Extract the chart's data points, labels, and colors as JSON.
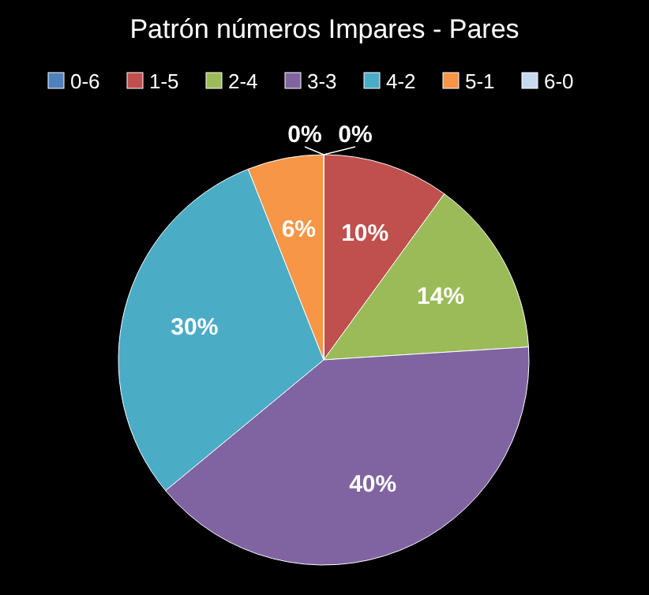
{
  "chart_data": {
    "type": "pie",
    "title": "Patrón números Impares - Pares",
    "categories": [
      "0-6",
      "1-5",
      "2-4",
      "3-3",
      "4-2",
      "5-1",
      "6-0"
    ],
    "values": [
      0,
      10,
      14,
      40,
      30,
      6,
      0
    ],
    "colors": [
      "#4f81bd",
      "#c0504d",
      "#9bbb59",
      "#8064a2",
      "#4bacc6",
      "#f79646",
      "#c6d9f1"
    ],
    "value_labels": [
      "0%",
      "10%",
      "14%",
      "40%",
      "30%",
      "6%",
      "0%"
    ],
    "legend": "top"
  }
}
